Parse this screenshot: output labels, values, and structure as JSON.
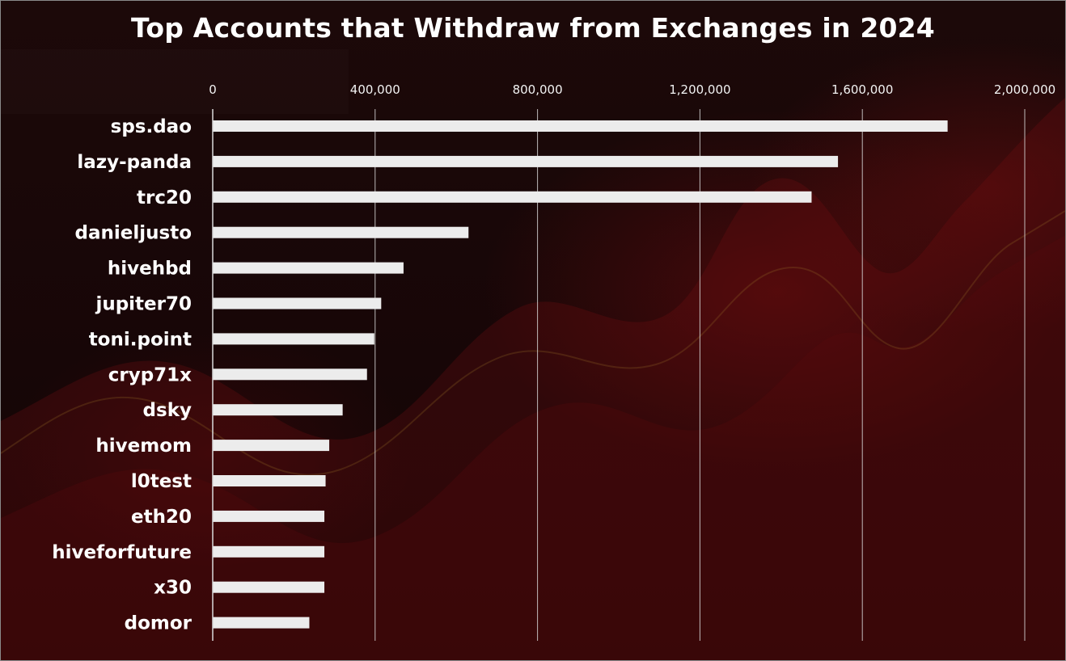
{
  "chart_data": {
    "type": "bar",
    "orientation": "horizontal",
    "title": "Top Accounts that Withdraw from Exchanges in 2024",
    "xlabel": "",
    "ylabel": "",
    "categories": [
      "sps.dao",
      "lazy-panda",
      "trc20",
      "danieljusto",
      "hivehbd",
      "jupiter70",
      "toni.point",
      "cryp71x",
      "dsky",
      "hivemom",
      "l0test",
      "eth20",
      "hiveforfuture",
      "x30",
      "domor"
    ],
    "values": [
      1810000,
      1540000,
      1475000,
      630000,
      470000,
      415000,
      398000,
      380000,
      320000,
      287000,
      278000,
      275000,
      275000,
      275000,
      238000
    ],
    "xlim": [
      0,
      2000000
    ],
    "xticks": [
      0,
      400000,
      800000,
      1200000,
      1600000,
      2000000
    ],
    "xtick_labels": [
      "0",
      "400,000",
      "800,000",
      "1,200,000",
      "1,600,000",
      "2,000,000"
    ],
    "axis_position": "top",
    "grid": true,
    "legend": "none",
    "colors": {
      "bar": "#ececec",
      "gridline": "#d9d9d9",
      "text": "#ffffff",
      "background": "#170707"
    }
  }
}
